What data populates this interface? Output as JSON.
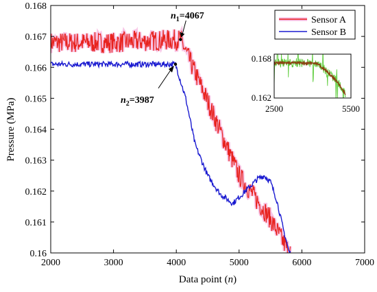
{
  "chart_data": {
    "type": "line",
    "xlabel": "Data point (",
    "xlabel_var": "n",
    "xlabel_end": ")",
    "ylabel": "Pressure (MPa)",
    "xlim": [
      2000,
      7000
    ],
    "ylim": [
      0.16,
      0.168
    ],
    "x_ticks": [
      "2000",
      "3000",
      "4000",
      "5000",
      "6000",
      "7000"
    ],
    "y_ticks": [
      "0.16",
      "0.161",
      "0.162",
      "0.163",
      "0.164",
      "0.165",
      "0.166",
      "0.167",
      "0.168"
    ],
    "legend_position": "top-right",
    "series": [
      {
        "name": "Sensor A",
        "color": "#e8231f",
        "x": [
          2000,
          3000,
          4067,
          4500,
          5000,
          5500,
          5800
        ],
        "y": [
          0.1668,
          0.1668,
          0.1669,
          0.1649,
          0.1625,
          0.1611,
          0.16
        ]
      },
      {
        "name": "Sensor B",
        "color": "#1a1ad0",
        "x": [
          2000,
          3000,
          3987,
          4150,
          4300,
          4500,
          4700,
          4900,
          5000,
          5200,
          5300,
          5400,
          5500,
          5600,
          5700,
          5800
        ],
        "y": [
          0.1661,
          0.1661,
          0.1661,
          0.165,
          0.1635,
          0.1625,
          0.1619,
          0.1616,
          0.1618,
          0.1622,
          0.1624,
          0.1625,
          0.1623,
          0.1617,
          0.1608,
          0.16
        ]
      }
    ],
    "annotations": [
      {
        "var": "n",
        "sub": "1",
        "value": "=4067",
        "x": 4067,
        "y": 0.1669
      },
      {
        "var": "n",
        "sub": "2",
        "value": "=3987",
        "x": 3987,
        "y": 0.1661
      }
    ],
    "inset": {
      "xlim": [
        2500,
        5500
      ],
      "ylim": [
        0.162,
        0.168
      ],
      "x_ticks": [
        "2500",
        "5500"
      ],
      "y_ticks": [
        "0.168",
        "0.162"
      ],
      "raw_color": "#5ccc3a",
      "smooth_color": "#8b4513",
      "x": [
        2500,
        3500,
        4200,
        4600,
        5000,
        5300
      ],
      "y": [
        0.1668,
        0.1668,
        0.1667,
        0.1655,
        0.1641,
        0.1624
      ]
    }
  }
}
